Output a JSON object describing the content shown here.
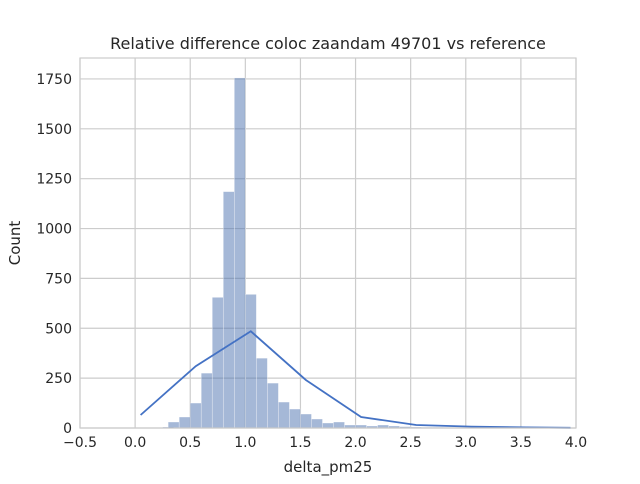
{
  "chart_data": {
    "type": "bar",
    "title": "Relative difference coloc zaandam 49701 vs reference",
    "xlabel": "delta_pm25",
    "ylabel": "Count",
    "xlim": [
      -0.5,
      4.0
    ],
    "ylim": [
      0,
      1750
    ],
    "grid": true,
    "x_ticks": [
      "−0.5",
      "0.0",
      "0.5",
      "1.0",
      "1.5",
      "2.0",
      "2.5",
      "3.0",
      "3.5",
      "4.0"
    ],
    "y_ticks": [
      "0",
      "250",
      "500",
      "750",
      "1000",
      "1250",
      "1500",
      "1750"
    ],
    "bar_color": "#4c72b0",
    "line_color": "#4472c4",
    "bin_width": 0.1,
    "bins": [
      {
        "x": 0.3,
        "count": 5
      },
      {
        "x": 0.35,
        "count": 30
      },
      {
        "x": 0.45,
        "count": 55
      },
      {
        "x": 0.55,
        "count": 125
      },
      {
        "x": 0.65,
        "count": 275
      },
      {
        "x": 0.75,
        "count": 655
      },
      {
        "x": 0.85,
        "count": 1185
      },
      {
        "x": 0.95,
        "count": 1755
      },
      {
        "x": 1.05,
        "count": 670
      },
      {
        "x": 1.15,
        "count": 350
      },
      {
        "x": 1.25,
        "count": 225
      },
      {
        "x": 1.35,
        "count": 130
      },
      {
        "x": 1.45,
        "count": 95
      },
      {
        "x": 1.55,
        "count": 70
      },
      {
        "x": 1.65,
        "count": 45
      },
      {
        "x": 1.75,
        "count": 25
      },
      {
        "x": 1.85,
        "count": 30
      },
      {
        "x": 1.95,
        "count": 15
      },
      {
        "x": 2.05,
        "count": 15
      },
      {
        "x": 2.15,
        "count": 10
      },
      {
        "x": 2.25,
        "count": 15
      },
      {
        "x": 2.35,
        "count": 10
      },
      {
        "x": 2.45,
        "count": 7
      },
      {
        "x": 2.55,
        "count": 5
      },
      {
        "x": 2.65,
        "count": 4
      },
      {
        "x": 2.75,
        "count": 4
      },
      {
        "x": 2.85,
        "count": 3
      },
      {
        "x": 2.95,
        "count": 3
      },
      {
        "x": 3.05,
        "count": 2
      },
      {
        "x": 3.15,
        "count": 2
      },
      {
        "x": 3.25,
        "count": 2
      },
      {
        "x": 3.35,
        "count": 2
      },
      {
        "x": 3.45,
        "count": 1
      },
      {
        "x": 3.55,
        "count": 1
      },
      {
        "x": 3.65,
        "count": 1
      },
      {
        "x": 3.75,
        "count": 1
      },
      {
        "x": 3.85,
        "count": 1
      }
    ],
    "line": {
      "x": [
        0.05,
        0.55,
        1.05,
        1.55,
        2.05,
        2.55,
        3.05,
        3.55,
        3.95
      ],
      "y": [
        65,
        310,
        485,
        240,
        55,
        15,
        7,
        3,
        1
      ]
    }
  }
}
